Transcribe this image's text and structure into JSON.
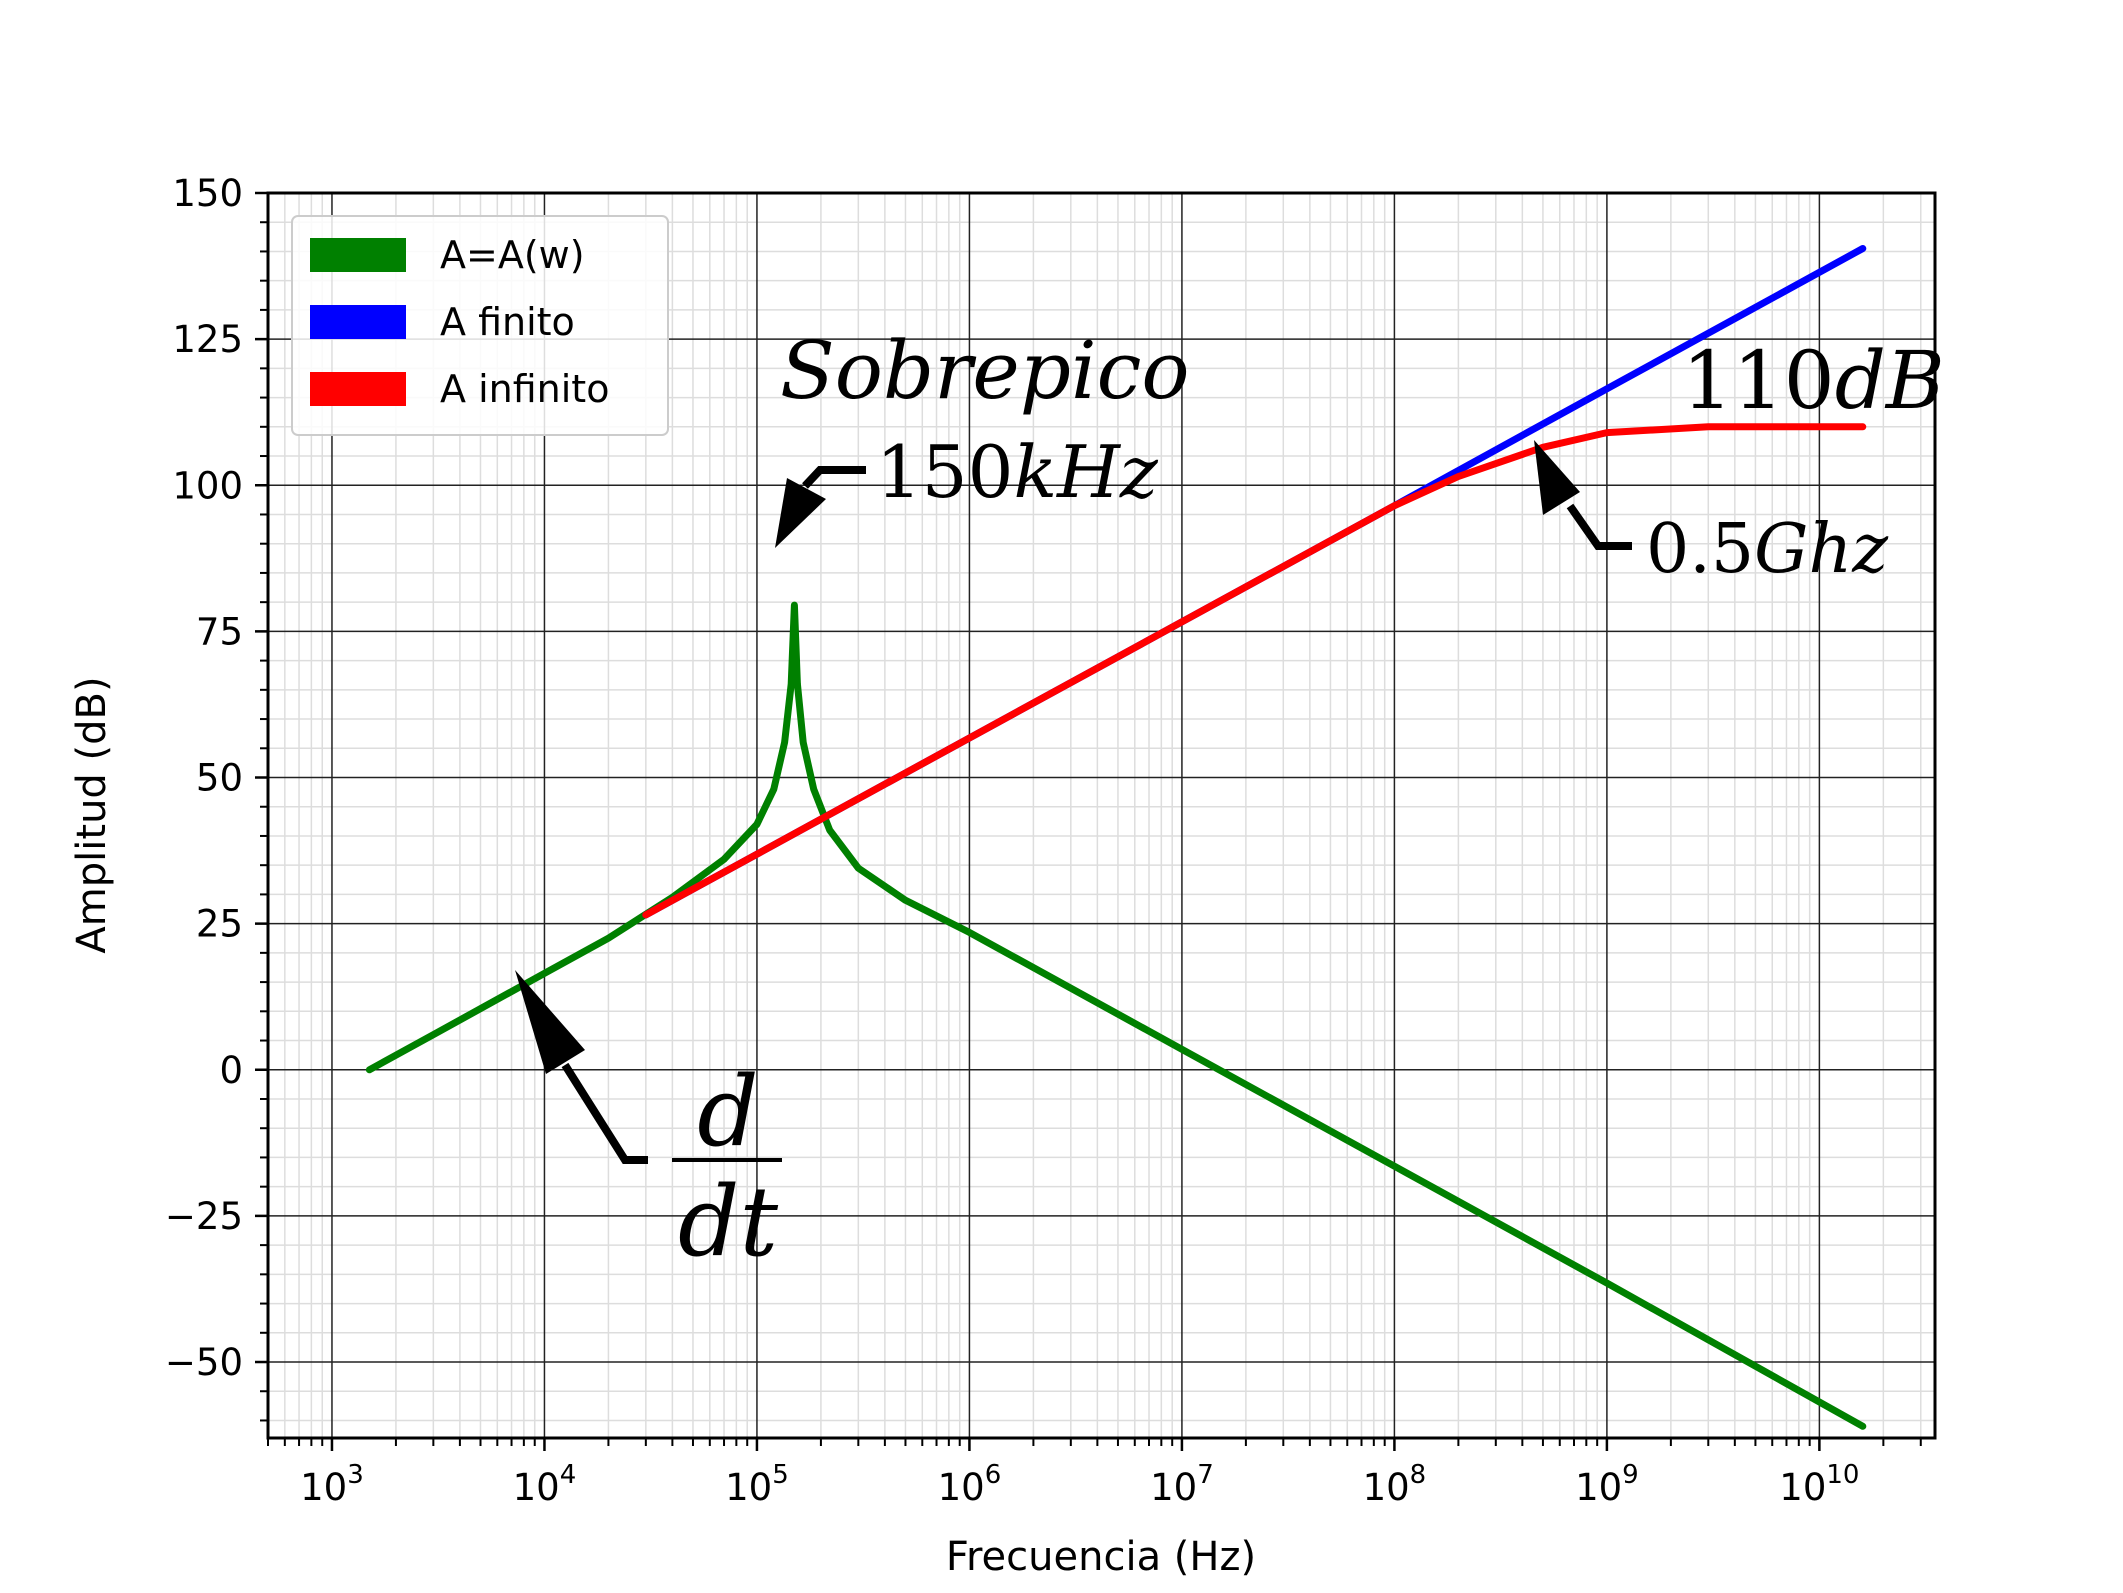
{
  "chart_data": {
    "type": "line",
    "xlabel": "Frecuencia (Hz)",
    "ylabel": "Amplitud (dB)",
    "xscale": "log",
    "xlim": [
      500,
      35000000000
    ],
    "ylim": [
      -63,
      150
    ],
    "grid": true,
    "legend_position": "top-left",
    "x_tick_labels": [
      {
        "base": "10",
        "exp": "3"
      },
      {
        "base": "10",
        "exp": "4"
      },
      {
        "base": "10",
        "exp": "5"
      },
      {
        "base": "10",
        "exp": "6"
      },
      {
        "base": "10",
        "exp": "7"
      },
      {
        "base": "10",
        "exp": "8"
      },
      {
        "base": "10",
        "exp": "9"
      },
      {
        "base": "10",
        "exp": "10"
      }
    ],
    "x_tick_values": [
      1000,
      10000,
      100000,
      1000000,
      10000000,
      100000000,
      1000000000,
      10000000000
    ],
    "y_tick_labels": [
      "150",
      "125",
      "100",
      "75",
      "50",
      "25",
      "0",
      "−25",
      "−50"
    ],
    "y_tick_values": [
      150,
      125,
      100,
      75,
      50,
      25,
      0,
      -25,
      -50
    ],
    "series": [
      {
        "name": "A=A(w)",
        "color": "#008000",
        "points": [
          [
            1500,
            0
          ],
          [
            3000,
            6
          ],
          [
            10000,
            16.5
          ],
          [
            20000,
            22.5
          ],
          [
            40000,
            29.5
          ],
          [
            70000,
            36
          ],
          [
            100000,
            42
          ],
          [
            120000,
            48
          ],
          [
            135000,
            56
          ],
          [
            145000,
            66
          ],
          [
            150000,
            79.5
          ],
          [
            155000,
            66
          ],
          [
            165000,
            56
          ],
          [
            185000,
            48
          ],
          [
            220000,
            41
          ],
          [
            300000,
            34.5
          ],
          [
            500000,
            29
          ],
          [
            1000000,
            23.5
          ],
          [
            10000000,
            3.5
          ],
          [
            100000000,
            -16.5
          ],
          [
            1000000000,
            -36.5
          ],
          [
            16000000000,
            -61
          ]
        ]
      },
      {
        "name": "A finito",
        "color": "#0000ff",
        "points": [
          [
            30000,
            26.5
          ],
          [
            100000000,
            96.5
          ],
          [
            1000000000,
            116.5
          ],
          [
            16000000000,
            140.5
          ]
        ]
      },
      {
        "name": "A infinito",
        "color": "#ff0000",
        "points": [
          [
            30000,
            26.5
          ],
          [
            100000000,
            96.5
          ],
          [
            200000000,
            101.5
          ],
          [
            500000000,
            106.5
          ],
          [
            1000000000,
            109
          ],
          [
            3000000000,
            110
          ],
          [
            16000000000,
            110
          ]
        ]
      }
    ],
    "annotations": [
      {
        "id": "sobrepico",
        "text": "Sobrepico",
        "italic": true
      },
      {
        "id": "f150",
        "text": "150kHz",
        "prefix": "150",
        "suffix": "kHz",
        "points_to": [
          150000,
          86
        ]
      },
      {
        "id": "db110",
        "text": "110dB",
        "prefix": "110",
        "suffix": "dB"
      },
      {
        "id": "ghz",
        "text": "0.5Ghz",
        "prefix": "0.5",
        "suffix": "Ghz",
        "points_to": [
          500000000,
          106.5
        ]
      },
      {
        "id": "deriv",
        "numerator": "d",
        "denominator": "dt",
        "points_to": [
          10000,
          16.5
        ]
      }
    ]
  }
}
